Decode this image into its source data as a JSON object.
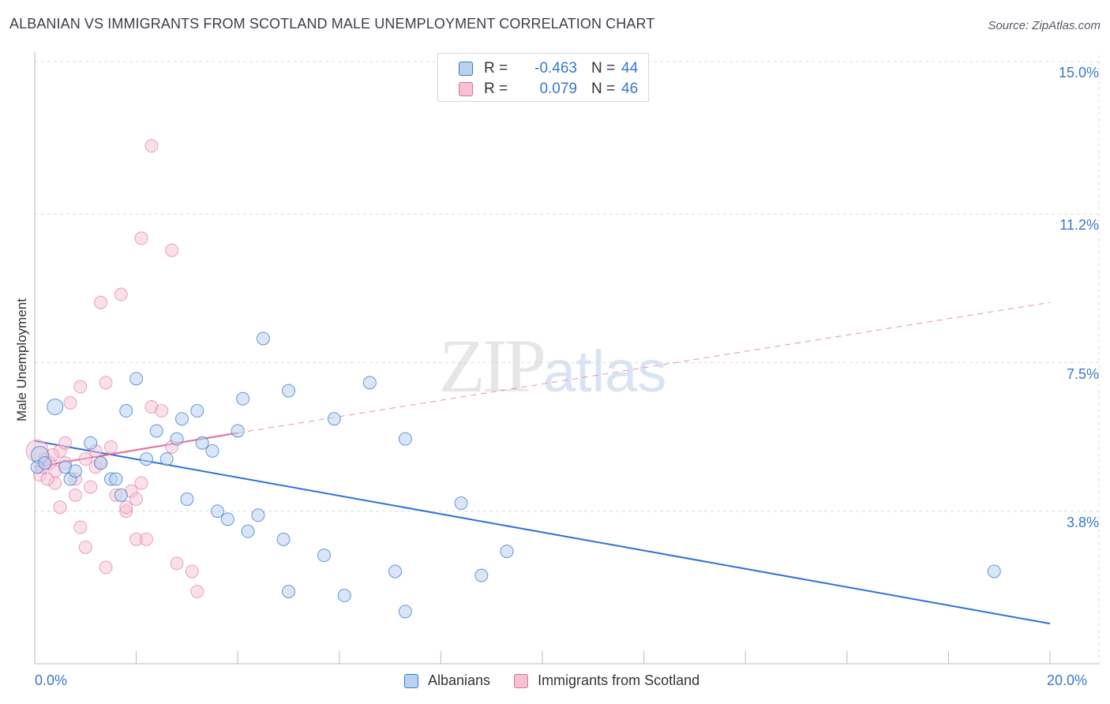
{
  "title": "ALBANIAN VS IMMIGRANTS FROM SCOTLAND MALE UNEMPLOYMENT CORRELATION CHART",
  "source": "Source: ZipAtlas.com",
  "watermark": {
    "zip": "ZIP",
    "atlas": "atlas"
  },
  "colors": {
    "blue": "#3a78c9",
    "blue_fill": "#b9d2f1",
    "blue_line": "#2f72d4",
    "pink": "#e36b98",
    "pink_fill": "#f6c1d3",
    "grid": "#dcdcdc"
  },
  "stats": [
    {
      "series": "Albanians",
      "r_label": "R =",
      "r_value": "-0.463",
      "n_label": "N =",
      "n_value": "44"
    },
    {
      "series": "Immigrants from Scotland",
      "r_label": "R =",
      "r_value": "0.079",
      "n_label": "N =",
      "n_value": "46"
    }
  ],
  "chart_data": {
    "type": "scatter",
    "title": "ALBANIAN VS IMMIGRANTS FROM SCOTLAND MALE UNEMPLOYMENT CORRELATION CHART",
    "xlabel": "",
    "ylabel": "Male Unemployment",
    "xlim": [
      0,
      20
    ],
    "ylim": [
      0,
      15
    ],
    "x_tick_labels": [
      "0.0%",
      "20.0%"
    ],
    "y_ticks": [
      3.8,
      7.5,
      11.2,
      15.0
    ],
    "y_tick_labels": [
      "3.8%",
      "7.5%",
      "11.2%",
      "15.0%"
    ],
    "legend": [
      "Albanians",
      "Immigrants from Scotland"
    ],
    "series": [
      {
        "name": "Albanians",
        "color": "#3a78c9",
        "points": [
          [
            0.1,
            5.2
          ],
          [
            0.4,
            6.4
          ],
          [
            0.6,
            4.9
          ],
          [
            0.7,
            4.6
          ],
          [
            0.8,
            4.8
          ],
          [
            1.1,
            5.5
          ],
          [
            1.3,
            5.0
          ],
          [
            1.5,
            4.6
          ],
          [
            1.6,
            4.6
          ],
          [
            1.7,
            4.2
          ],
          [
            1.8,
            6.3
          ],
          [
            2.0,
            7.1
          ],
          [
            2.2,
            5.1
          ],
          [
            2.4,
            5.8
          ],
          [
            2.6,
            5.1
          ],
          [
            2.8,
            5.6
          ],
          [
            2.9,
            6.1
          ],
          [
            3.0,
            4.1
          ],
          [
            3.2,
            6.3
          ],
          [
            3.3,
            5.5
          ],
          [
            3.5,
            5.3
          ],
          [
            3.6,
            3.8
          ],
          [
            3.8,
            3.6
          ],
          [
            4.1,
            6.6
          ],
          [
            4.0,
            5.8
          ],
          [
            4.2,
            3.3
          ],
          [
            4.4,
            3.7
          ],
          [
            4.5,
            8.1
          ],
          [
            4.9,
            3.1
          ],
          [
            5.0,
            1.8
          ],
          [
            5.0,
            6.8
          ],
          [
            5.7,
            2.7
          ],
          [
            5.9,
            6.1
          ],
          [
            6.1,
            1.7
          ],
          [
            6.6,
            7.0
          ],
          [
            7.1,
            2.3
          ],
          [
            7.3,
            1.3
          ],
          [
            7.3,
            5.6
          ],
          [
            8.4,
            4.0
          ],
          [
            8.8,
            2.2
          ],
          [
            9.3,
            2.8
          ],
          [
            18.9,
            2.3
          ],
          [
            0.05,
            4.9
          ],
          [
            0.2,
            5.0
          ]
        ],
        "trend": {
          "x": [
            0.0,
            20.0
          ],
          "y": [
            5.55,
            1.0
          ],
          "style": "solid"
        }
      },
      {
        "name": "Immigrants from Scotland",
        "color": "#e36b98",
        "points": [
          [
            0.05,
            5.3
          ],
          [
            0.1,
            4.7
          ],
          [
            0.15,
            4.9
          ],
          [
            0.2,
            5.1
          ],
          [
            0.3,
            5.0
          ],
          [
            0.4,
            4.8
          ],
          [
            0.4,
            4.5
          ],
          [
            0.5,
            5.3
          ],
          [
            0.5,
            3.9
          ],
          [
            0.6,
            5.5
          ],
          [
            0.7,
            6.5
          ],
          [
            0.8,
            4.6
          ],
          [
            0.8,
            4.2
          ],
          [
            0.9,
            3.4
          ],
          [
            0.9,
            6.9
          ],
          [
            1.0,
            2.9
          ],
          [
            1.1,
            4.4
          ],
          [
            1.2,
            4.9
          ],
          [
            1.2,
            5.3
          ],
          [
            1.3,
            9.0
          ],
          [
            1.3,
            5.0
          ],
          [
            1.4,
            7.0
          ],
          [
            1.4,
            2.4
          ],
          [
            1.5,
            5.4
          ],
          [
            1.6,
            4.2
          ],
          [
            1.7,
            9.2
          ],
          [
            1.8,
            3.8
          ],
          [
            1.8,
            3.9
          ],
          [
            1.9,
            4.3
          ],
          [
            2.0,
            3.1
          ],
          [
            2.0,
            4.1
          ],
          [
            2.1,
            10.6
          ],
          [
            2.1,
            4.5
          ],
          [
            2.2,
            3.1
          ],
          [
            2.3,
            12.9
          ],
          [
            2.3,
            6.4
          ],
          [
            2.5,
            6.3
          ],
          [
            2.7,
            5.4
          ],
          [
            2.7,
            10.3
          ],
          [
            2.8,
            2.5
          ],
          [
            3.1,
            2.3
          ],
          [
            3.2,
            1.8
          ],
          [
            0.25,
            4.6
          ],
          [
            0.35,
            5.2
          ],
          [
            0.6,
            5.0
          ],
          [
            1.0,
            5.1
          ]
        ],
        "trend": {
          "x": [
            0.0,
            4.0
          ],
          "y": [
            4.9,
            5.75
          ],
          "style": "solid"
        },
        "trend_extension": {
          "x": [
            4.0,
            20.0
          ],
          "y": [
            5.75,
            9.0
          ],
          "style": "dashed"
        }
      }
    ]
  }
}
